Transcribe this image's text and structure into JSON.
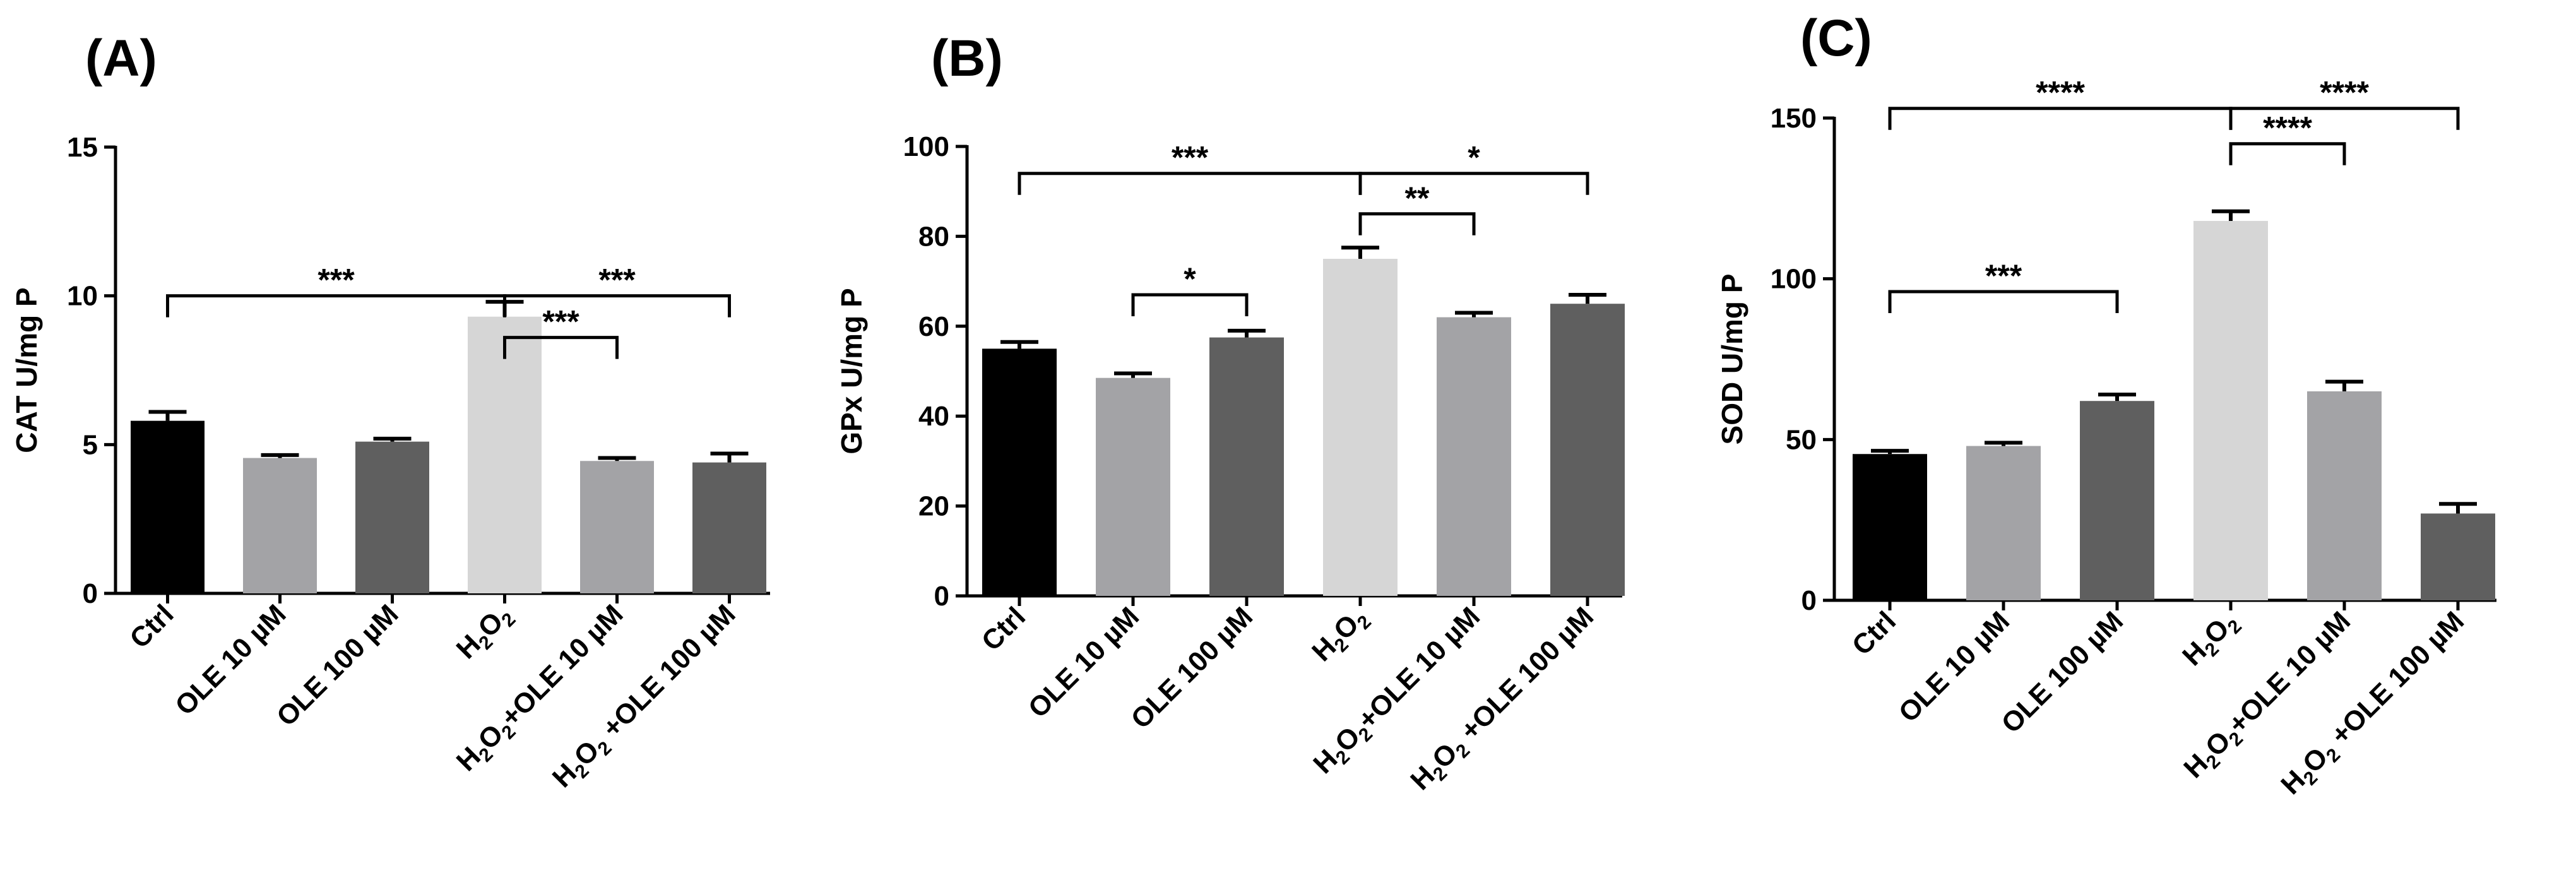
{
  "figure": {
    "domain": "Chart",
    "bar_colors": [
      "#000000",
      "#a3a3a6",
      "#5f5f5f",
      "#d6d6d6",
      "#a3a3a6",
      "#5f5f5f"
    ]
  },
  "chart_data": [
    {
      "panel": "(A)",
      "type": "bar",
      "ylabel": "CAT U/mg P",
      "ylim": [
        0,
        15
      ],
      "yticks": [
        "0",
        "5",
        "10",
        "15"
      ],
      "categories": [
        {
          "main": "Ctrl"
        },
        {
          "main": "OLE 10 µM"
        },
        {
          "main": "OLE 100 µM"
        },
        {
          "h2o2": true,
          "rest": ""
        },
        {
          "h2o2": true,
          "rest": "+OLE 10 µM"
        },
        {
          "h2o2": true,
          "rest": " +OLE 100 µM"
        }
      ],
      "values": [
        5.8,
        4.55,
        5.1,
        9.3,
        4.45,
        4.4
      ],
      "errors": [
        0.3,
        0.1,
        0.1,
        0.5,
        0.1,
        0.3
      ],
      "significance": [
        {
          "from": 0,
          "to": 3,
          "label": "***",
          "level": 10.0
        },
        {
          "from": 3,
          "to": 4,
          "label": "***",
          "level": 8.6
        },
        {
          "from": 3,
          "to": 5,
          "label": "***",
          "level": 10.0
        }
      ]
    },
    {
      "panel": "(B)",
      "type": "bar",
      "ylabel": "GPx U/mg P",
      "ylim": [
        0,
        100
      ],
      "yticks": [
        "0",
        "20",
        "40",
        "60",
        "80",
        "100"
      ],
      "categories": [
        {
          "main": "Ctrl"
        },
        {
          "main": "OLE 10 µM"
        },
        {
          "main": "OLE 100 µM"
        },
        {
          "h2o2": true,
          "rest": ""
        },
        {
          "h2o2": true,
          "rest": "+OLE 10 µM"
        },
        {
          "h2o2": true,
          "rest": " +OLE 100 µM"
        }
      ],
      "values": [
        55,
        48.5,
        57.5,
        75,
        62,
        65
      ],
      "errors": [
        1.5,
        1.0,
        1.5,
        2.5,
        1.0,
        2.0
      ],
      "significance": [
        {
          "from": 0,
          "to": 3,
          "label": "***",
          "level": 94
        },
        {
          "from": 1,
          "to": 2,
          "label": "*",
          "level": 67
        },
        {
          "from": 3,
          "to": 4,
          "label": "**",
          "level": 85
        },
        {
          "from": 3,
          "to": 5,
          "label": "*",
          "level": 94
        }
      ]
    },
    {
      "panel": "(C)",
      "type": "bar",
      "ylabel": "SOD U/mg P",
      "ylim": [
        0,
        150
      ],
      "yticks": [
        "0",
        "50",
        "100",
        "150"
      ],
      "categories": [
        {
          "main": "Ctrl"
        },
        {
          "main": "OLE 10 µM"
        },
        {
          "main": "OLE 100 µM"
        },
        {
          "h2o2": true,
          "rest": ""
        },
        {
          "h2o2": true,
          "rest": "+OLE 10 µM"
        },
        {
          "h2o2": true,
          "rest": " +OLE 100 µM"
        }
      ],
      "values": [
        45.5,
        48,
        62,
        118,
        65,
        27
      ],
      "errors": [
        1.0,
        1.0,
        2.0,
        3.0,
        3.0,
        3.0
      ],
      "significance": [
        {
          "from": 0,
          "to": 3,
          "label": "****",
          "level": 153
        },
        {
          "from": 3,
          "to": 5,
          "label": "****",
          "level": 153
        },
        {
          "from": 3,
          "to": 4,
          "label": "****",
          "level": 142
        },
        {
          "from": 0,
          "to": 2,
          "label": "***",
          "level": 96
        }
      ]
    }
  ]
}
